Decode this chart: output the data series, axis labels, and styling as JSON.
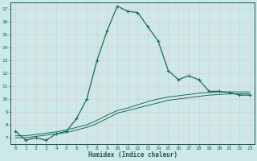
{
  "title": "",
  "xlabel": "Humidex (Indice chaleur)",
  "ylabel": "",
  "background_color": "#cce8e8",
  "grid_color": "#e8c8c8",
  "line_color": "#1a6b5a",
  "xlim": [
    -0.5,
    23.5
  ],
  "ylim": [
    6.5,
    17.5
  ],
  "xticks": [
    0,
    1,
    2,
    3,
    4,
    5,
    6,
    7,
    8,
    9,
    10,
    11,
    12,
    13,
    14,
    15,
    16,
    17,
    18,
    19,
    20,
    21,
    22,
    23
  ],
  "yticks": [
    7,
    8,
    9,
    10,
    11,
    12,
    13,
    14,
    15,
    16,
    17
  ],
  "main_x": [
    0,
    1,
    2,
    3,
    4,
    5,
    6,
    7,
    8,
    9,
    10,
    11,
    12,
    13,
    14,
    15,
    16,
    17,
    18,
    19,
    20,
    21,
    22,
    23
  ],
  "main_y": [
    7.5,
    6.8,
    7.0,
    6.8,
    7.3,
    7.5,
    8.5,
    10.0,
    13.0,
    15.3,
    17.2,
    16.8,
    16.7,
    15.6,
    14.5,
    12.2,
    11.5,
    11.8,
    11.5,
    10.6,
    10.6,
    10.5,
    10.3,
    10.3
  ],
  "line2_x": [
    0,
    1,
    2,
    3,
    4,
    5,
    6,
    7,
    8,
    9,
    10,
    11,
    12,
    13,
    14,
    15,
    16,
    17,
    18,
    19,
    20,
    21,
    22,
    23
  ],
  "line2_y": [
    7.0,
    7.0,
    7.1,
    7.2,
    7.3,
    7.4,
    7.6,
    7.8,
    8.1,
    8.5,
    8.9,
    9.1,
    9.3,
    9.5,
    9.7,
    9.9,
    10.0,
    10.1,
    10.2,
    10.3,
    10.35,
    10.4,
    10.4,
    10.4
  ],
  "line3_x": [
    0,
    1,
    2,
    3,
    4,
    5,
    6,
    7,
    8,
    9,
    10,
    11,
    12,
    13,
    14,
    15,
    16,
    17,
    18,
    19,
    20,
    21,
    22,
    23
  ],
  "line3_y": [
    7.15,
    7.15,
    7.25,
    7.35,
    7.45,
    7.6,
    7.8,
    8.0,
    8.35,
    8.75,
    9.1,
    9.3,
    9.55,
    9.8,
    10.0,
    10.15,
    10.25,
    10.35,
    10.45,
    10.5,
    10.55,
    10.55,
    10.55,
    10.55
  ]
}
